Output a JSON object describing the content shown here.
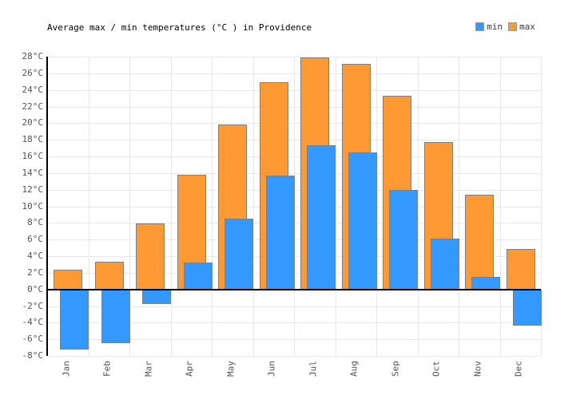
{
  "chart_data": {
    "type": "bar",
    "title": "Average max / min temperatures (°C ) in Providence",
    "categories": [
      "Jan",
      "Feb",
      "Mar",
      "Apr",
      "May",
      "Jun",
      "Jul",
      "Aug",
      "Sep",
      "Oct",
      "Nov",
      "Dec"
    ],
    "series": [
      {
        "name": "min",
        "color": "#3399FF",
        "values": [
          -7.2,
          -6.5,
          -1.8,
          3.2,
          8.5,
          13.7,
          17.3,
          16.5,
          12.0,
          6.1,
          1.5,
          -4.4
        ]
      },
      {
        "name": "max",
        "color": "#FF9933",
        "values": [
          2.4,
          3.3,
          7.9,
          13.8,
          19.8,
          24.9,
          27.9,
          27.1,
          23.3,
          17.7,
          11.4,
          4.9
        ]
      }
    ],
    "xlabel": "",
    "ylabel": "",
    "ylim": [
      -8,
      28
    ],
    "y_step": 2,
    "y_unit": "°C",
    "y_tick_labels": [
      "28°C",
      "26°C",
      "24°C",
      "22°C",
      "20°C",
      "18°C",
      "16°C",
      "14°C",
      "12°C",
      "10°C",
      "8°C",
      "6°C",
      "4°C",
      "2°C",
      "0°C",
      "-2°C",
      "-4°C",
      "-6°C",
      "-8°C"
    ],
    "grid": true,
    "legend_position": "top-right"
  },
  "legend": {
    "min_label": "min",
    "max_label": "max"
  },
  "colors": {
    "min": "#3399FF",
    "max": "#FF9933",
    "grid": "#e8e8e8",
    "axis": "#000000",
    "tick_text": "#545454",
    "title_text": "#000000"
  }
}
